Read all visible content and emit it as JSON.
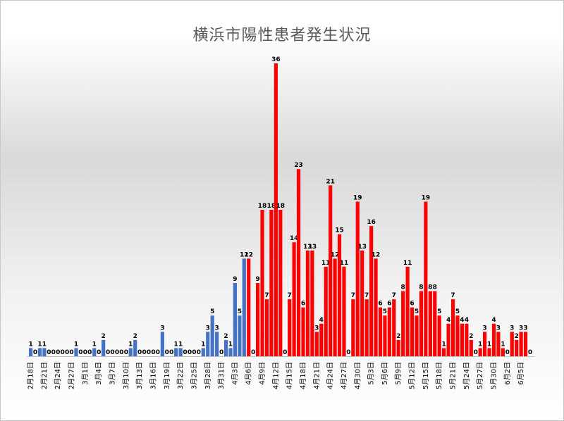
{
  "chart_data": {
    "type": "bar",
    "title": "横浜市陽性患者発生状況",
    "xlabel": "",
    "ylabel": "",
    "ylim": [
      0,
      36
    ],
    "grid": false,
    "legend": "none",
    "colors": {
      "before_apr6": "#4472c4",
      "from_apr6": "#ff0000"
    },
    "start_date": "2020-02-18",
    "x_ticks": [
      "2月18日",
      "2月21日",
      "2月24日",
      "2月27日",
      "3月1日",
      "3月4日",
      "3月7日",
      "3月10日",
      "3月13日",
      "3月16日",
      "3月19日",
      "3月22日",
      "3月25日",
      "3月28日",
      "3月31日",
      "4月3日",
      "4月6日",
      "4月9日",
      "4月12日",
      "4月15日",
      "4月18日",
      "4月21日",
      "4月24日",
      "4月27日",
      "4月30日",
      "5月3日",
      "5月6日",
      "5月9日",
      "5月12日",
      "5月15日",
      "5月18日",
      "5月21日",
      "5月24日",
      "5月27日",
      "5月30日",
      "6月2日",
      "6月5日"
    ],
    "values": [
      1,
      0,
      1,
      1,
      0,
      0,
      0,
      0,
      0,
      0,
      1,
      0,
      0,
      0,
      1,
      0,
      2,
      0,
      0,
      0,
      0,
      0,
      1,
      2,
      0,
      0,
      0,
      0,
      0,
      3,
      0,
      0,
      1,
      1,
      0,
      0,
      0,
      0,
      1,
      3,
      5,
      3,
      0,
      2,
      1,
      9,
      5,
      12,
      12,
      0,
      9,
      18,
      7,
      18,
      36,
      18,
      0,
      7,
      14,
      23,
      6,
      13,
      13,
      3,
      4,
      11,
      21,
      12,
      15,
      11,
      0,
      7,
      19,
      13,
      7,
      16,
      12,
      6,
      5,
      6,
      7,
      2,
      8,
      11,
      6,
      5,
      8,
      19,
      8,
      8,
      5,
      1,
      4,
      7,
      5,
      4,
      4,
      2,
      0,
      1,
      3,
      1,
      4,
      3,
      1,
      0,
      3,
      2,
      3,
      3,
      0
    ],
    "red_from_index": 48
  }
}
